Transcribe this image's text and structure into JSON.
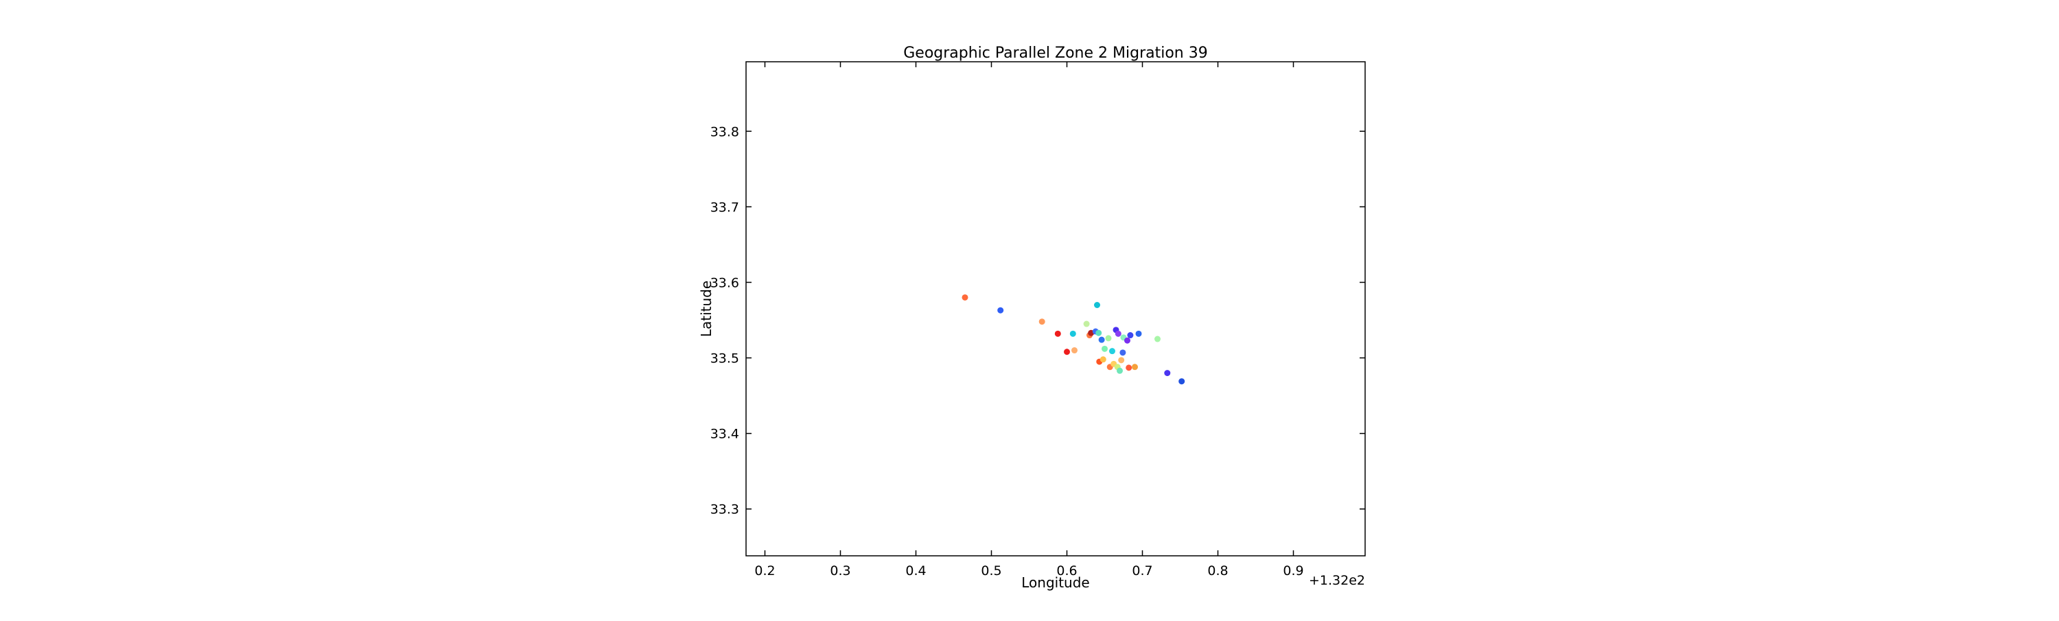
{
  "chart_data": {
    "type": "scatter",
    "title": "Geographic Parallel Zone 2 Migration 39",
    "xlabel": "Longitude",
    "ylabel": "Latitude",
    "x_offset_label": "+1.32e2",
    "xlim": [
      0.175,
      0.995
    ],
    "ylim": [
      33.238,
      33.892
    ],
    "x_ticks": [
      0.2,
      0.3,
      0.4,
      0.5,
      0.6,
      0.7,
      0.8,
      0.9
    ],
    "x_tick_labels": [
      "0.2",
      "0.3",
      "0.4",
      "0.5",
      "0.6",
      "0.7",
      "0.8",
      "0.9"
    ],
    "y_ticks": [
      33.3,
      33.4,
      33.5,
      33.6,
      33.7,
      33.8
    ],
    "y_tick_labels": [
      "33.3",
      "33.4",
      "33.5",
      "33.6",
      "33.7",
      "33.8"
    ],
    "grid": false,
    "points": [
      {
        "x": 0.465,
        "y": 33.58,
        "color": "#ff6a3a"
      },
      {
        "x": 0.512,
        "y": 33.563,
        "color": "#2f5ef5"
      },
      {
        "x": 0.567,
        "y": 33.548,
        "color": "#ff9a5a"
      },
      {
        "x": 0.588,
        "y": 33.532,
        "color": "#ee1d1d"
      },
      {
        "x": 0.6,
        "y": 33.508,
        "color": "#ee1d1d"
      },
      {
        "x": 0.608,
        "y": 33.532,
        "color": "#19c7dd"
      },
      {
        "x": 0.61,
        "y": 33.51,
        "color": "#ffae6e"
      },
      {
        "x": 0.626,
        "y": 33.545,
        "color": "#c3f0a0"
      },
      {
        "x": 0.63,
        "y": 33.53,
        "color": "#ff7a40"
      },
      {
        "x": 0.632,
        "y": 33.533,
        "color": "#b02020"
      },
      {
        "x": 0.638,
        "y": 33.535,
        "color": "#3f6ff5"
      },
      {
        "x": 0.64,
        "y": 33.57,
        "color": "#12c1d5"
      },
      {
        "x": 0.642,
        "y": 33.533,
        "color": "#59e0c0"
      },
      {
        "x": 0.643,
        "y": 33.495,
        "color": "#ff5522"
      },
      {
        "x": 0.646,
        "y": 33.524,
        "color": "#2d72f0"
      },
      {
        "x": 0.648,
        "y": 33.498,
        "color": "#ffc04a"
      },
      {
        "x": 0.65,
        "y": 33.512,
        "color": "#7df2b0"
      },
      {
        "x": 0.655,
        "y": 33.526,
        "color": "#a8f5a0"
      },
      {
        "x": 0.657,
        "y": 33.488,
        "color": "#ff7a40"
      },
      {
        "x": 0.66,
        "y": 33.509,
        "color": "#21d0e0"
      },
      {
        "x": 0.662,
        "y": 33.492,
        "color": "#ffd060"
      },
      {
        "x": 0.665,
        "y": 33.537,
        "color": "#4a2ef0"
      },
      {
        "x": 0.667,
        "y": 33.488,
        "color": "#d0f080"
      },
      {
        "x": 0.668,
        "y": 33.532,
        "color": "#8a3ff2"
      },
      {
        "x": 0.67,
        "y": 33.483,
        "color": "#6fe6b8"
      },
      {
        "x": 0.672,
        "y": 33.497,
        "color": "#ffb86a"
      },
      {
        "x": 0.674,
        "y": 33.507,
        "color": "#3f68f0"
      },
      {
        "x": 0.675,
        "y": 33.527,
        "color": "#8cf0c0"
      },
      {
        "x": 0.68,
        "y": 33.523,
        "color": "#7a2ef0"
      },
      {
        "x": 0.682,
        "y": 33.487,
        "color": "#ff5a3a"
      },
      {
        "x": 0.684,
        "y": 33.53,
        "color": "#3c46f0"
      },
      {
        "x": 0.69,
        "y": 33.488,
        "color": "#f5a03a"
      },
      {
        "x": 0.695,
        "y": 33.532,
        "color": "#2a66f0"
      },
      {
        "x": 0.72,
        "y": 33.525,
        "color": "#a8f5a8"
      },
      {
        "x": 0.733,
        "y": 33.48,
        "color": "#4a35f0"
      },
      {
        "x": 0.752,
        "y": 33.469,
        "color": "#2050e0"
      }
    ]
  }
}
